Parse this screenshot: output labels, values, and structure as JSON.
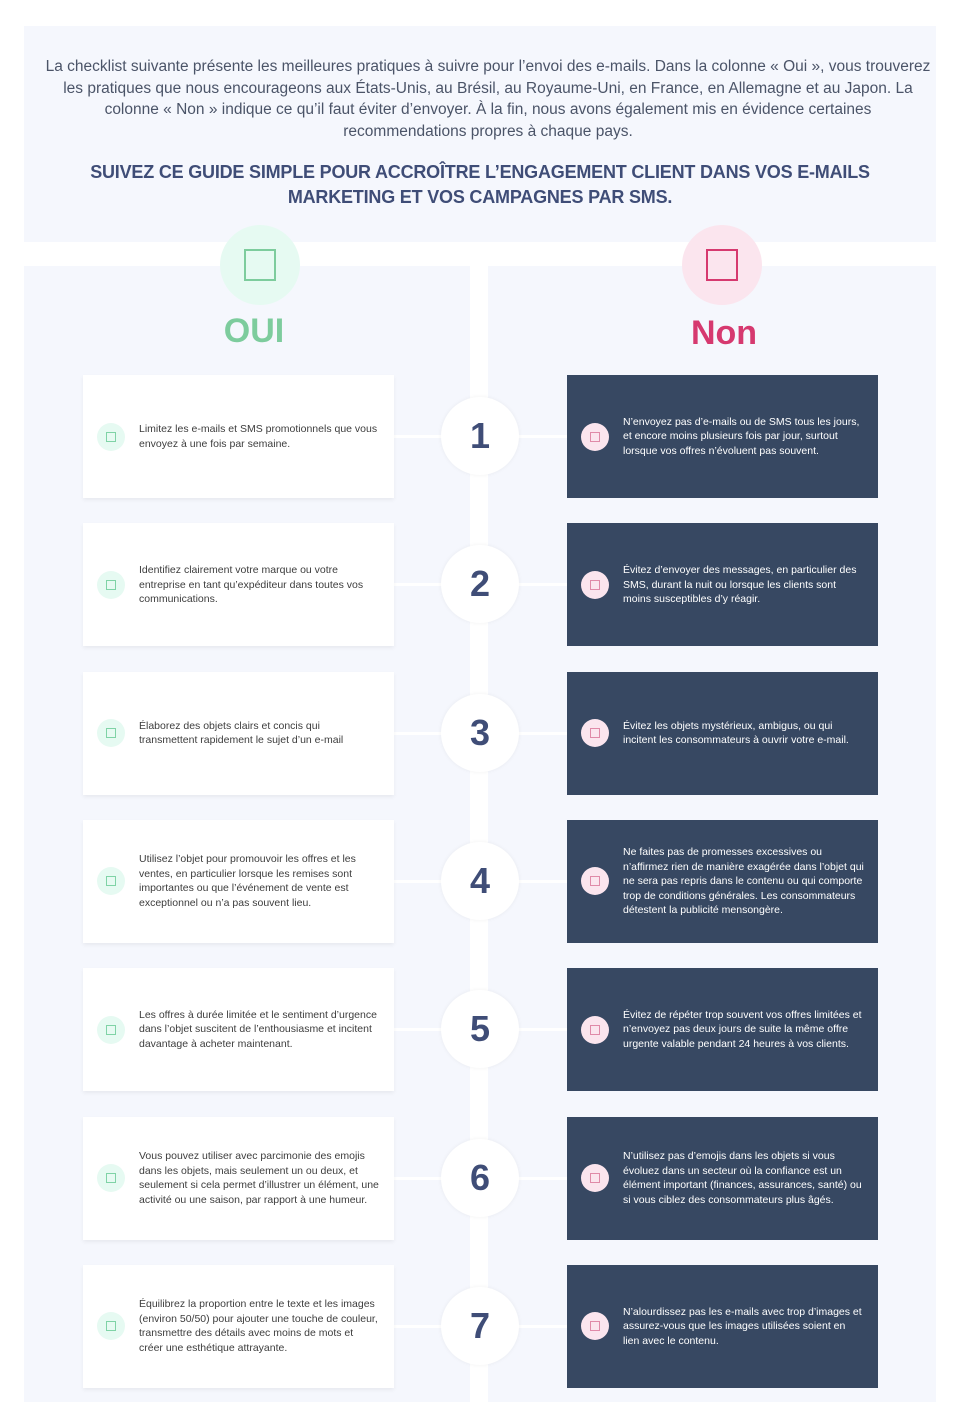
{
  "intro": "La checklist suivante présente les meilleures pratiques à suivre pour l’envoi des e-mails. Dans la colonne « Oui », vous trouverez les pratiques que nous encourageons aux États-Unis, au Brésil, au Royaume-Uni, en France, en Allemagne et au Japon. La colonne « Non » indique ce qu’il faut éviter d’envoyer. À la fin, nous avons également mis en évidence certaines recommendations propres à chaque pays.",
  "headline": "SUIVEZ CE GUIDE SIMPLE POUR ACCROÎTRE L’ENGAGEMENT CLIENT DANS VOS E-MAILS MARKETING ET VOS CAMPAGNES PAR SMS.",
  "columns": {
    "yes": {
      "title": "OUI",
      "color": "#7dcc9d",
      "icon": "checkbox-icon"
    },
    "no": {
      "title": "Non",
      "color": "#d6396f",
      "icon": "checkbox-icon"
    }
  },
  "rows": [
    {
      "number": "1",
      "yes": "Limitez les e-mails et SMS promotionnels que vous envoyez à une fois par semaine.",
      "no": "N’envoyez pas d’e-mails ou de SMS tous les jours, et encore moins plusieurs fois par jour, surtout lorsque vos offres n’évoluent pas souvent."
    },
    {
      "number": "2",
      "yes": "Identifiez clairement votre marque ou votre entreprise en tant qu’expéditeur dans toutes vos communications.",
      "no": "Évitez d’envoyer des messages, en particulier des SMS, durant la nuit ou lorsque les clients sont moins susceptibles d’y réagir."
    },
    {
      "number": "3",
      "yes": "Élaborez des objets clairs et concis qui transmettent rapidement le sujet d’un e-mail",
      "no": "Évitez les objets mystérieux, ambigus, ou qui incitent les consommateurs à ouvrir votre e-mail."
    },
    {
      "number": "4",
      "yes": "Utilisez l’objet pour promouvoir les offres et les ventes, en particulier lorsque les remises sont importantes ou que l’événement de vente est exceptionnel ou n’a pas souvent lieu.",
      "no": "Ne faites pas de promesses excessives ou n’affirmez rien de manière exagérée dans l’objet qui ne sera pas repris dans le contenu ou qui comporte trop de conditions générales. Les consommateurs détestent la publicité mensongère."
    },
    {
      "number": "5",
      "yes": "Les offres à durée limitée et le sentiment d’urgence dans l’objet suscitent de l’enthousiasme et incitent davantage à acheter maintenant.",
      "no": "Évitez de répéter trop souvent vos offres limitées et n’envoyez pas deux jours de suite la même offre urgente valable pendant 24 heures à vos clients."
    },
    {
      "number": "6",
      "yes": "Vous pouvez utiliser avec parcimonie des emojis dans les objets, mais seulement un ou deux, et seulement si cela permet d’illustrer un élément, une activité ou une saison, par rapport à une humeur.",
      "no": "N’utilisez pas d’emojis dans les objets si vous évoluez dans un secteur où la confiance est un élément important (finances, assurances, santé) ou si vous ciblez des consommateurs plus âgés."
    },
    {
      "number": "7",
      "yes": "Équilibrez la proportion entre le texte et les images (environ 50/50) pour ajouter une touche de couleur, transmettre des détails avec moins de mots et créer une esthétique attrayante.",
      "no": "N’alourdissez pas les e-mails avec trop d’images et assurez-vous que les images utilisées soient en lien avec le contenu."
    }
  ]
}
